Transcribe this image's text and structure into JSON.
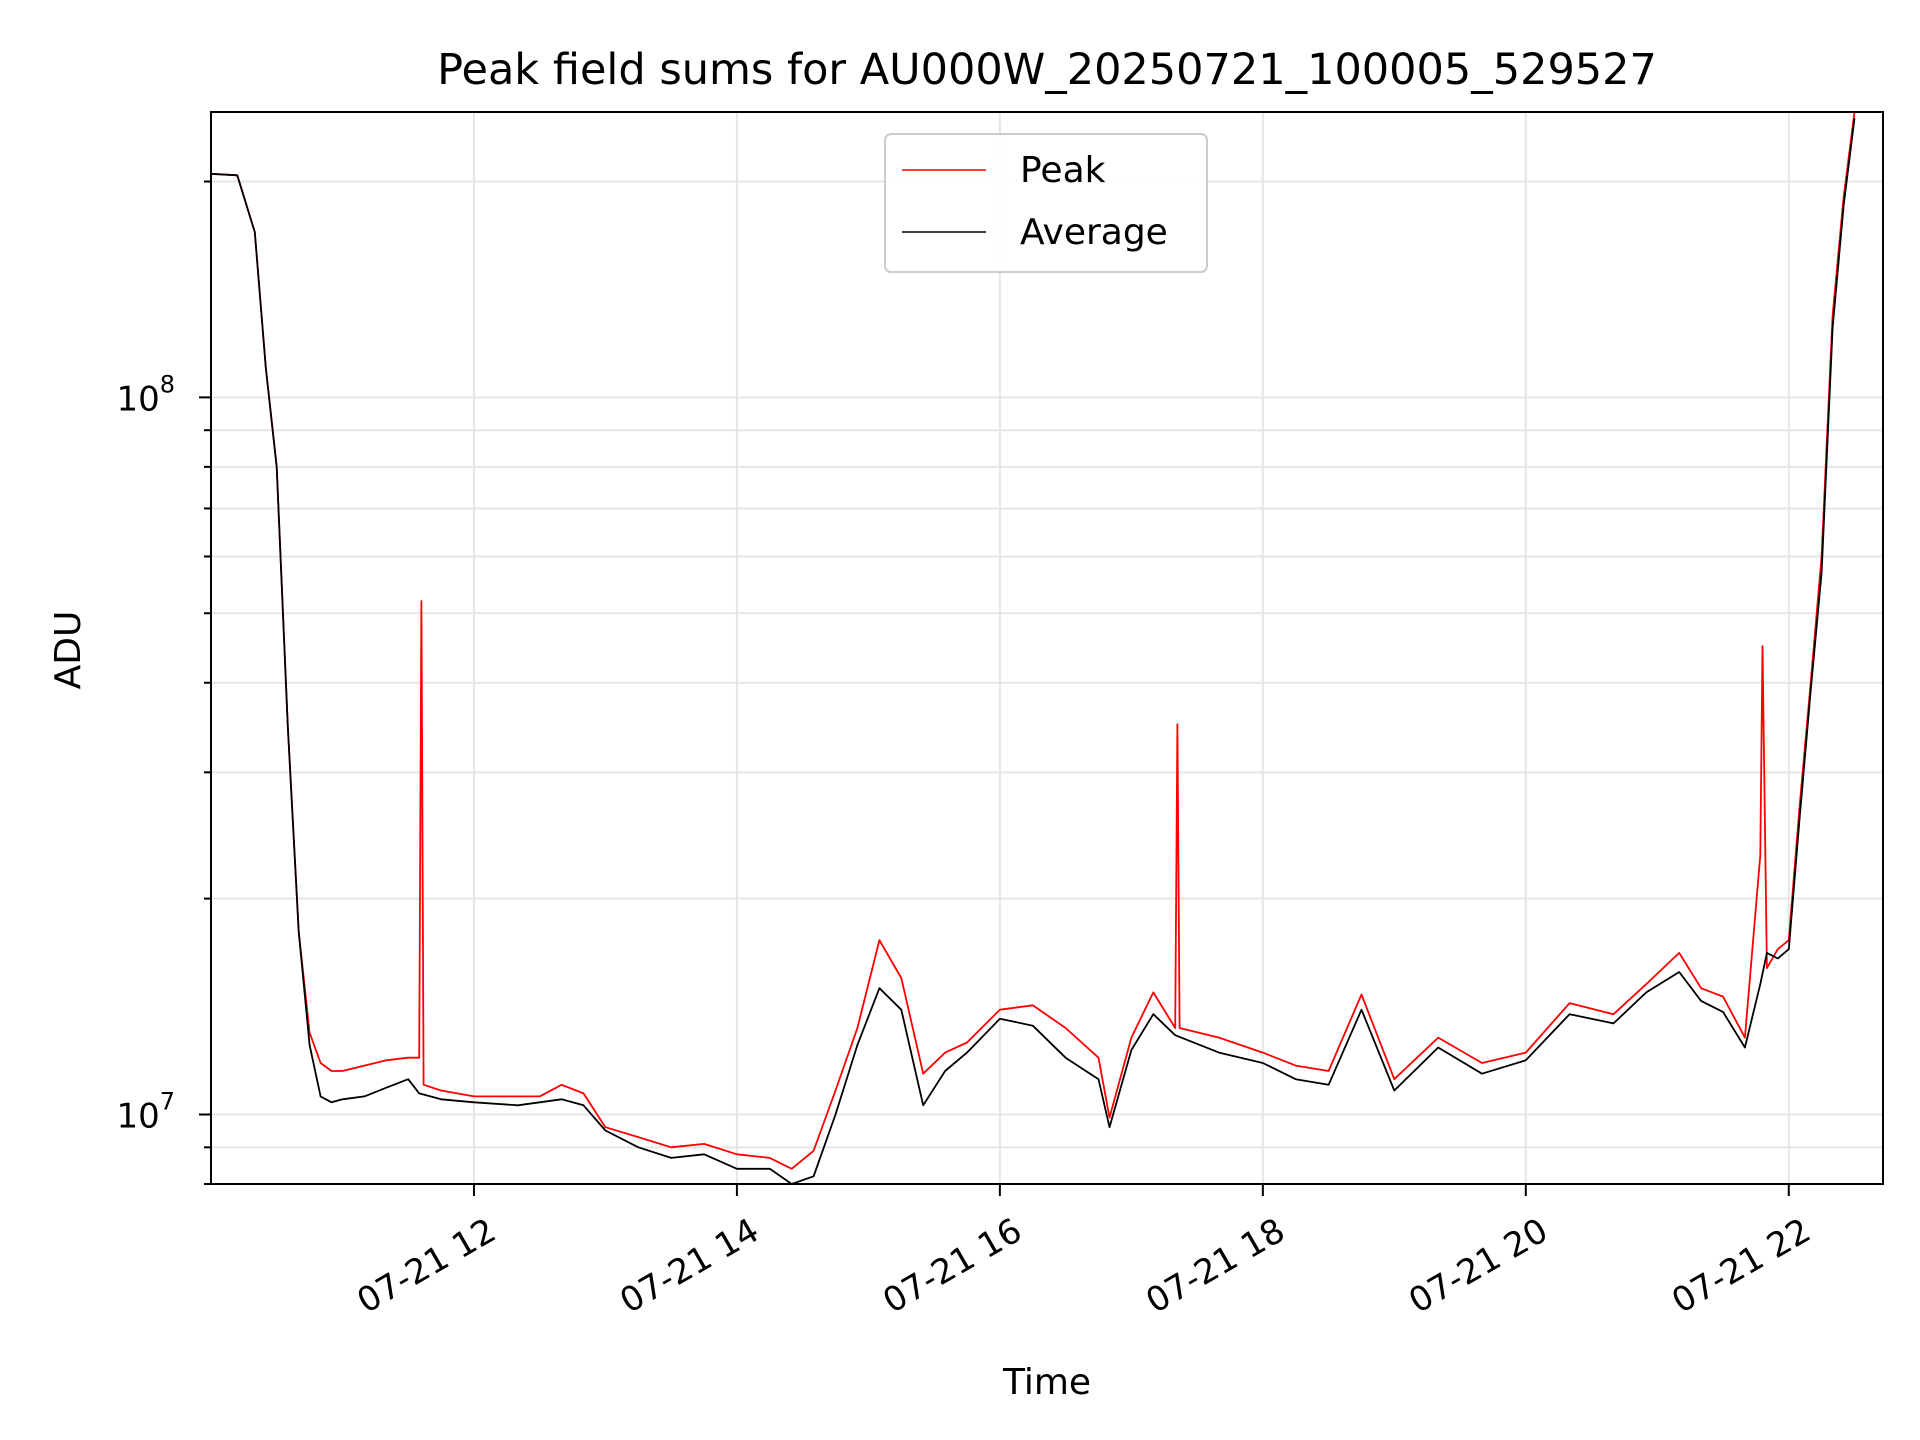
{
  "chart_data": {
    "type": "line",
    "title": "Peak field sums for AU000W_20250721_100005_529527",
    "xlabel": "Time",
    "ylabel": "ADU",
    "y_scale": "log",
    "ylim": [
      8000000,
      250000000
    ],
    "xlim": [
      "2025-07-21 10:00",
      "2025-07-21 22:43"
    ],
    "x_ticks": [
      {
        "value": "2025-07-21 12:00",
        "label": "07-21 12"
      },
      {
        "value": "2025-07-21 14:00",
        "label": "07-21 14"
      },
      {
        "value": "2025-07-21 16:00",
        "label": "07-21 16"
      },
      {
        "value": "2025-07-21 18:00",
        "label": "07-21 18"
      },
      {
        "value": "2025-07-21 20:00",
        "label": "07-21 20"
      },
      {
        "value": "2025-07-21 22:00",
        "label": "07-21 22"
      }
    ],
    "y_ticks": [
      {
        "value": 10000000,
        "base": "10",
        "exp": "7"
      },
      {
        "value": 100000000,
        "base": "10",
        "exp": "8"
      }
    ],
    "grid": true,
    "legend_position": "top-center",
    "series": [
      {
        "name": "Peak",
        "color": "#ff0000",
        "x": [
          "2025-07-21 10:00",
          "2025-07-21 10:12",
          "2025-07-21 10:20",
          "2025-07-21 10:25",
          "2025-07-21 10:30",
          "2025-07-21 10:35",
          "2025-07-21 10:40",
          "2025-07-21 10:45",
          "2025-07-21 10:50",
          "2025-07-21 10:55",
          "2025-07-21 11:00",
          "2025-07-21 11:10",
          "2025-07-21 11:20",
          "2025-07-21 11:30",
          "2025-07-21 11:35",
          "2025-07-21 11:36",
          "2025-07-21 11:37",
          "2025-07-21 11:45",
          "2025-07-21 12:00",
          "2025-07-21 12:20",
          "2025-07-21 12:30",
          "2025-07-21 12:40",
          "2025-07-21 12:50",
          "2025-07-21 13:00",
          "2025-07-21 13:15",
          "2025-07-21 13:30",
          "2025-07-21 13:45",
          "2025-07-21 14:00",
          "2025-07-21 14:15",
          "2025-07-21 14:25",
          "2025-07-21 14:35",
          "2025-07-21 14:45",
          "2025-07-21 14:55",
          "2025-07-21 15:05",
          "2025-07-21 15:15",
          "2025-07-21 15:25",
          "2025-07-21 15:35",
          "2025-07-21 15:45",
          "2025-07-21 16:00",
          "2025-07-21 16:15",
          "2025-07-21 16:30",
          "2025-07-21 16:45",
          "2025-07-21 16:50",
          "2025-07-21 17:00",
          "2025-07-21 17:10",
          "2025-07-21 17:20",
          "2025-07-21 17:21",
          "2025-07-21 17:22",
          "2025-07-21 17:40",
          "2025-07-21 18:00",
          "2025-07-21 18:15",
          "2025-07-21 18:30",
          "2025-07-21 18:45",
          "2025-07-21 19:00",
          "2025-07-21 19:20",
          "2025-07-21 19:40",
          "2025-07-21 20:00",
          "2025-07-21 20:20",
          "2025-07-21 20:40",
          "2025-07-21 20:55",
          "2025-07-21 21:10",
          "2025-07-21 21:20",
          "2025-07-21 21:30",
          "2025-07-21 21:40",
          "2025-07-21 21:47",
          "2025-07-21 21:48",
          "2025-07-21 21:50",
          "2025-07-21 21:55",
          "2025-07-21 22:00",
          "2025-07-21 22:05",
          "2025-07-21 22:10",
          "2025-07-21 22:15",
          "2025-07-21 22:20",
          "2025-07-21 22:25",
          "2025-07-21 22:30"
        ],
        "values": [
          205000000,
          204000000,
          170000000,
          110000000,
          80000000,
          35000000,
          18000000,
          13000000,
          11800000,
          11500000,
          11500000,
          11700000,
          11900000,
          12000000,
          12000000,
          52000000,
          11000000,
          10800000,
          10600000,
          10600000,
          10600000,
          11000000,
          10700000,
          9600000,
          9300000,
          9000000,
          9100000,
          8800000,
          8700000,
          8400000,
          8900000,
          10800000,
          13200000,
          17500000,
          15500000,
          11400000,
          12200000,
          12600000,
          14000000,
          14200000,
          13200000,
          12000000,
          9900000,
          12800000,
          14800000,
          13200000,
          35000000,
          13200000,
          12800000,
          12200000,
          11700000,
          11500000,
          14700000,
          11200000,
          12800000,
          11800000,
          12200000,
          14300000,
          13800000,
          15200000,
          16800000,
          15000000,
          14600000,
          12800000,
          23000000,
          45000000,
          16000000,
          17000000,
          17500000,
          27000000,
          40000000,
          60000000,
          130000000,
          190000000,
          250000000
        ]
      },
      {
        "name": "Average",
        "color": "#000000",
        "x": [
          "2025-07-21 10:00",
          "2025-07-21 10:12",
          "2025-07-21 10:20",
          "2025-07-21 10:25",
          "2025-07-21 10:30",
          "2025-07-21 10:35",
          "2025-07-21 10:40",
          "2025-07-21 10:45",
          "2025-07-21 10:50",
          "2025-07-21 10:55",
          "2025-07-21 11:00",
          "2025-07-21 11:10",
          "2025-07-21 11:20",
          "2025-07-21 11:30",
          "2025-07-21 11:35",
          "2025-07-21 11:45",
          "2025-07-21 12:00",
          "2025-07-21 12:20",
          "2025-07-21 12:30",
          "2025-07-21 12:40",
          "2025-07-21 12:50",
          "2025-07-21 13:00",
          "2025-07-21 13:15",
          "2025-07-21 13:30",
          "2025-07-21 13:45",
          "2025-07-21 14:00",
          "2025-07-21 14:15",
          "2025-07-21 14:25",
          "2025-07-21 14:35",
          "2025-07-21 14:45",
          "2025-07-21 14:55",
          "2025-07-21 15:05",
          "2025-07-21 15:15",
          "2025-07-21 15:25",
          "2025-07-21 15:35",
          "2025-07-21 15:45",
          "2025-07-21 16:00",
          "2025-07-21 16:15",
          "2025-07-21 16:30",
          "2025-07-21 16:45",
          "2025-07-21 16:50",
          "2025-07-21 17:00",
          "2025-07-21 17:10",
          "2025-07-21 17:20",
          "2025-07-21 17:40",
          "2025-07-21 18:00",
          "2025-07-21 18:15",
          "2025-07-21 18:30",
          "2025-07-21 18:45",
          "2025-07-21 19:00",
          "2025-07-21 19:20",
          "2025-07-21 19:40",
          "2025-07-21 20:00",
          "2025-07-21 20:20",
          "2025-07-21 20:40",
          "2025-07-21 20:55",
          "2025-07-21 21:10",
          "2025-07-21 21:20",
          "2025-07-21 21:30",
          "2025-07-21 21:40",
          "2025-07-21 21:47",
          "2025-07-21 21:50",
          "2025-07-21 21:55",
          "2025-07-21 22:00",
          "2025-07-21 22:05",
          "2025-07-21 22:10",
          "2025-07-21 22:15",
          "2025-07-21 22:20",
          "2025-07-21 22:25",
          "2025-07-21 22:30"
        ],
        "values": [
          205000000,
          204000000,
          170000000,
          110000000,
          80000000,
          35000000,
          18000000,
          12500000,
          10600000,
          10400000,
          10500000,
          10600000,
          10900000,
          11200000,
          10700000,
          10500000,
          10400000,
          10300000,
          10400000,
          10500000,
          10300000,
          9500000,
          9000000,
          8700000,
          8800000,
          8400000,
          8400000,
          8000000,
          8200000,
          10000000,
          12500000,
          15000000,
          14000000,
          10300000,
          11500000,
          12200000,
          13600000,
          13300000,
          12000000,
          11200000,
          9600000,
          12300000,
          13800000,
          12900000,
          12200000,
          11800000,
          11200000,
          11000000,
          14000000,
          10800000,
          12400000,
          11400000,
          11900000,
          13800000,
          13400000,
          14800000,
          15800000,
          14400000,
          13900000,
          12400000,
          15200000,
          16800000,
          16500000,
          17000000,
          26000000,
          39000000,
          57000000,
          125000000,
          185000000,
          245000000
        ]
      }
    ]
  }
}
